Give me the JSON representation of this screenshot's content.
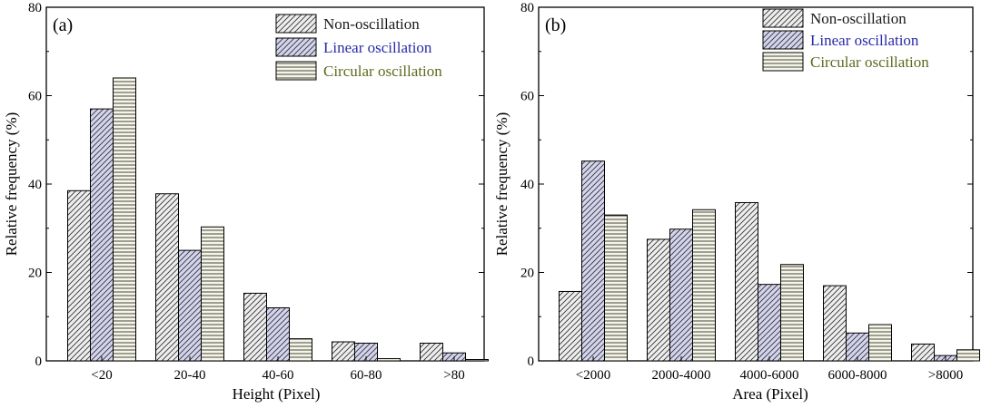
{
  "chart_data": [
    {
      "type": "bar",
      "panel_label": "(a)",
      "xlabel": "Height (Pixel)",
      "ylabel": "Relative frequency (%)",
      "ylim": [
        0,
        80
      ],
      "yticks": [
        "0",
        "20",
        "40",
        "60",
        "80"
      ],
      "categories": [
        "<20",
        "20-40",
        "40-60",
        "60-80",
        ">80"
      ],
      "legend_position": "top-right",
      "series": [
        {
          "name": "Non-oscillation",
          "pattern": "diagonal",
          "fill": "#eeeeee",
          "text_color": "#1a1a1a",
          "values": [
            38.5,
            37.8,
            15.3,
            4.3,
            4.0
          ]
        },
        {
          "name": "Linear oscillation",
          "pattern": "diagonal",
          "fill": "#d4d4ee",
          "text_color": "#2a2aa8",
          "values": [
            57.0,
            25.0,
            12.0,
            4.0,
            1.8
          ]
        },
        {
          "name": "Circular oscillation",
          "pattern": "horizontal",
          "fill": "#f6f6e6",
          "text_color": "#5d6a1e",
          "values": [
            64.0,
            30.3,
            5.0,
            0.5,
            0.3
          ]
        }
      ]
    },
    {
      "type": "bar",
      "panel_label": "(b)",
      "xlabel": "Area (Pixel)",
      "ylabel": "Relative frequency (%)",
      "ylim": [
        0,
        80
      ],
      "yticks": [
        "0",
        "20",
        "40",
        "60",
        "80"
      ],
      "categories": [
        "<2000",
        "2000-4000",
        "4000-6000",
        "6000-8000",
        ">8000"
      ],
      "legend_position": "top-right",
      "series": [
        {
          "name": "Non-oscillation",
          "pattern": "diagonal",
          "fill": "#eeeeee",
          "text_color": "#1a1a1a",
          "values": [
            15.7,
            27.5,
            35.8,
            17.0,
            3.8
          ]
        },
        {
          "name": "Linear oscillation",
          "pattern": "diagonal",
          "fill": "#d4d4ee",
          "text_color": "#2a2aa8",
          "values": [
            45.2,
            29.8,
            17.3,
            6.3,
            1.2
          ]
        },
        {
          "name": "Circular oscillation",
          "pattern": "horizontal",
          "fill": "#f6f6e6",
          "text_color": "#5d6a1e",
          "values": [
            33.0,
            34.2,
            21.8,
            8.2,
            2.5
          ]
        }
      ]
    }
  ]
}
